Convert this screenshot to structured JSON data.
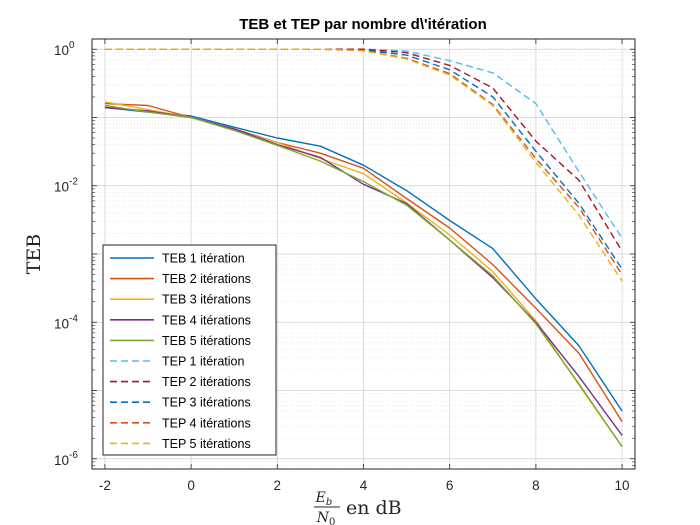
{
  "chart_data": {
    "type": "line",
    "title": "TEB et TEP par nombre d\\'itération",
    "xlabel_fraction_num": "E",
    "xlabel_fraction_num_sub": "b",
    "xlabel_fraction_den": "N",
    "xlabel_fraction_den_sub": "0",
    "xlabel_suffix": "en dB",
    "ylabel": "TEB",
    "x_ticks": [
      "-2",
      "0",
      "2",
      "4",
      "6",
      "8",
      "10"
    ],
    "y_ticks": [
      {
        "base": "10",
        "exp": "0"
      },
      {
        "base": "10",
        "exp": "-2"
      },
      {
        "base": "10",
        "exp": "-4"
      },
      {
        "base": "10",
        "exp": "-6"
      }
    ],
    "xlim": [
      -2.3,
      10.3
    ],
    "ylim_log10": [
      -6.15,
      0.15
    ],
    "y_scale": "log",
    "grid": true,
    "legend_position": "bottom-left",
    "x": [
      -2,
      -1,
      0,
      1,
      2,
      3,
      4,
      5,
      6,
      7,
      8,
      9,
      10
    ],
    "series": [
      {
        "name": "TEB 1 itération",
        "color": "#0072BD",
        "dash": false,
        "values": [
          0.14,
          0.12,
          0.105,
          0.072,
          0.05,
          0.038,
          0.02,
          0.0085,
          0.0031,
          0.0012,
          0.00022,
          4.5e-05,
          5e-06
        ]
      },
      {
        "name": "TEB 2 itérations",
        "color": "#D95319",
        "dash": false,
        "values": [
          0.16,
          0.15,
          0.1,
          0.068,
          0.043,
          0.03,
          0.018,
          0.0065,
          0.0024,
          0.0007,
          0.00016,
          3.5e-05,
          3.5e-06
        ]
      },
      {
        "name": "TEB 3 itérations",
        "color": "#EDB120",
        "dash": false,
        "values": [
          0.17,
          0.13,
          0.1,
          0.065,
          0.043,
          0.025,
          0.015,
          0.0056,
          0.0019,
          0.00055,
          0.000105,
          1.2e-05,
          1.5e-06
        ]
      },
      {
        "name": "TEB 4 itérations",
        "color": "#7E2F8E",
        "dash": false,
        "values": [
          0.14,
          0.125,
          0.1,
          0.068,
          0.04,
          0.026,
          0.0105,
          0.0055,
          0.0016,
          0.00045,
          0.0001,
          1.6e-05,
          2.2e-06
        ]
      },
      {
        "name": "TEB 5 itérations",
        "color": "#77AC30",
        "dash": false,
        "values": [
          0.15,
          0.12,
          0.1,
          0.065,
          0.039,
          0.023,
          0.0115,
          0.0052,
          0.0016,
          0.00048,
          9.5e-05,
          1.25e-05,
          1.5e-06
        ]
      },
      {
        "name": "TEP 1 itération",
        "color": "#4DBEEE",
        "dash": true,
        "values": [
          1,
          1,
          1,
          1,
          1,
          1,
          1,
          0.94,
          0.68,
          0.45,
          0.16,
          0.016,
          0.0017
        ]
      },
      {
        "name": "TEP 2 itérations",
        "color": "#A2142F",
        "dash": true,
        "values": [
          1,
          1,
          1,
          1,
          1,
          1,
          1,
          0.89,
          0.58,
          0.27,
          0.045,
          0.012,
          0.0011
        ]
      },
      {
        "name": "TEP 3 itérations",
        "color": "#0072BD",
        "dash": true,
        "values": [
          1,
          1,
          1,
          1,
          1,
          1,
          0.97,
          0.82,
          0.5,
          0.2,
          0.032,
          0.0055,
          0.0006
        ]
      },
      {
        "name": "TEP 4 itérations",
        "color": "#D95319",
        "dash": true,
        "values": [
          1,
          1,
          1,
          1,
          1,
          1,
          0.95,
          0.74,
          0.44,
          0.155,
          0.025,
          0.0048,
          0.0005
        ]
      },
      {
        "name": "TEP 5 itérations",
        "color": "#EDB120",
        "dash": true,
        "values": [
          1,
          1,
          1,
          1,
          1,
          1,
          0.95,
          0.72,
          0.42,
          0.15,
          0.022,
          0.0037,
          0.0004
        ]
      }
    ]
  }
}
